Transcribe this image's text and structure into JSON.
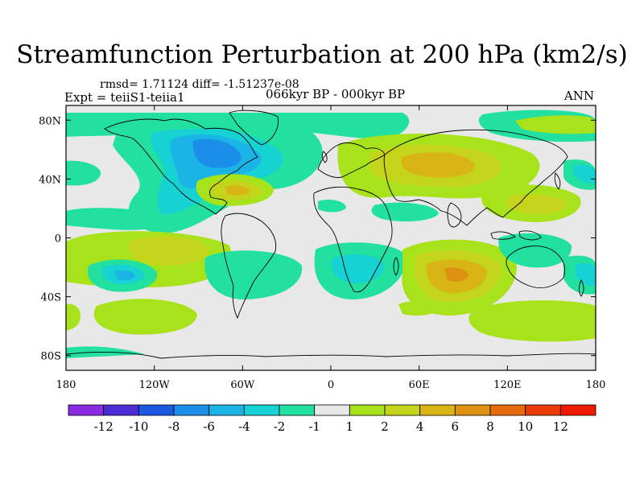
{
  "title": "Streamfunction Perturbation at 200 hPa (km2/s)",
  "stats_line": "rmsd= 1.71124 diff= -1.51237e-08",
  "experiment": "Expt = teiiS1-teiia1",
  "period": "066kyr BP - 000kyr BP",
  "season": "ANN",
  "map": {
    "projection": "cylindrical-equidistant",
    "lon_range": [
      -180,
      180
    ],
    "lat_range": [
      -90,
      90
    ],
    "x_ticks": [
      {
        "lon": -180,
        "label": "180"
      },
      {
        "lon": -120,
        "label": "120W"
      },
      {
        "lon": -60,
        "label": "60W"
      },
      {
        "lon": 0,
        "label": "0"
      },
      {
        "lon": 60,
        "label": "60E"
      },
      {
        "lon": 120,
        "label": "120E"
      },
      {
        "lon": 180,
        "label": "180"
      }
    ],
    "y_ticks": [
      {
        "lat": 80,
        "label": "80N"
      },
      {
        "lat": 40,
        "label": "40N"
      },
      {
        "lat": 0,
        "label": "0"
      },
      {
        "lat": -40,
        "label": "40S"
      },
      {
        "lat": -80,
        "label": "80S"
      }
    ]
  },
  "colorbar": {
    "labels": [
      "-12",
      "-10",
      "-8",
      "-6",
      "-4",
      "-2",
      "-1",
      "1",
      "2",
      "4",
      "6",
      "8",
      "10",
      "12"
    ],
    "colors": [
      "#8a2be2",
      "#4b2bd6",
      "#1e57e0",
      "#1a8ee8",
      "#1ab4e6",
      "#16d2d2",
      "#22e0a0",
      "#e8e8e8",
      "#a8e21a",
      "#c4d41a",
      "#d8b414",
      "#dc9210",
      "#e46a0c",
      "#ea3a08",
      "#ee1a04"
    ]
  }
}
